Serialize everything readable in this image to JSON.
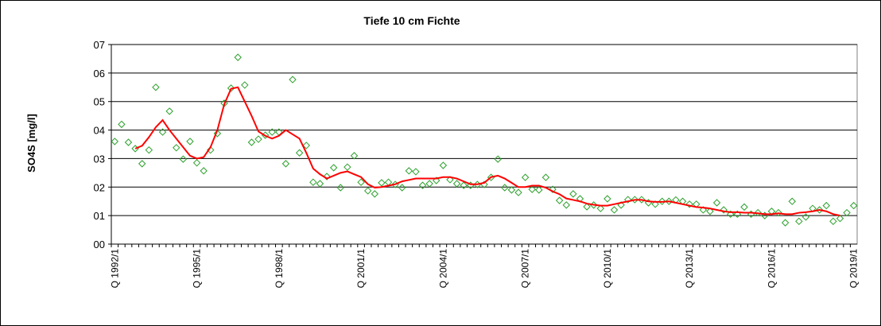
{
  "chart_data": {
    "type": "line",
    "title": "Tiefe  10 cm    Fichte",
    "y_label": "SO4S [mg/l]",
    "categories": [
      "Q 1992/1",
      null,
      null,
      null,
      null,
      null,
      null,
      null,
      null,
      null,
      null,
      null,
      "Q 1995/1",
      null,
      null,
      null,
      null,
      null,
      null,
      null,
      null,
      null,
      null,
      null,
      "Q 1998/1",
      null,
      null,
      null,
      null,
      null,
      null,
      null,
      null,
      null,
      null,
      null,
      "Q 2001/1",
      null,
      null,
      null,
      null,
      null,
      null,
      null,
      null,
      null,
      null,
      null,
      "Q 2004/1",
      null,
      null,
      null,
      null,
      null,
      null,
      null,
      null,
      null,
      null,
      null,
      "Q 2007/1",
      null,
      null,
      null,
      null,
      null,
      null,
      null,
      null,
      null,
      null,
      null,
      "Q 2010/1",
      null,
      null,
      null,
      null,
      null,
      null,
      null,
      null,
      null,
      null,
      null,
      "Q 2013/1",
      null,
      null,
      null,
      null,
      null,
      null,
      null,
      null,
      null,
      null,
      null,
      "Q 2016/1",
      null,
      null,
      null,
      null,
      null,
      null,
      null,
      null,
      null,
      null,
      null,
      "Q 2019/1"
    ],
    "series": [
      {
        "mark": "diamond",
        "color": "#2ca02c",
        "values": [
          3.6,
          4.2,
          3.57,
          3.35,
          2.82,
          3.3,
          5.5,
          3.93,
          4.66,
          3.38,
          2.98,
          3.6,
          2.85,
          2.57,
          3.3,
          3.88,
          4.94,
          5.47,
          6.55,
          5.58,
          3.57,
          3.68,
          3.82,
          3.93,
          3.93,
          2.82,
          5.77,
          3.2,
          3.46,
          2.17,
          2.12,
          2.37,
          2.68,
          1.98,
          2.7,
          3.1,
          2.17,
          1.87,
          1.76,
          2.15,
          2.17,
          2.09,
          1.98,
          2.57,
          2.54,
          2.06,
          2.12,
          2.23,
          2.76,
          2.26,
          2.12,
          2.06,
          2.06,
          2.09,
          2.09,
          2.34,
          2.98,
          1.98,
          1.9,
          1.81,
          2.34,
          1.92,
          1.9,
          2.34,
          1.92,
          1.53,
          1.37,
          1.76,
          1.59,
          1.31,
          1.37,
          1.25,
          1.59,
          1.2,
          1.37,
          1.56,
          1.56,
          1.56,
          1.45,
          1.4,
          1.5,
          1.5,
          1.55,
          1.5,
          1.4,
          1.4,
          1.2,
          1.15,
          1.45,
          1.2,
          1.05,
          1.05,
          1.3,
          1.05,
          1.1,
          1.0,
          1.15,
          1.1,
          0.75,
          1.5,
          0.8,
          0.95,
          1.25,
          1.2,
          1.35,
          0.8,
          0.9,
          1.1,
          1.35
        ]
      },
      {
        "mark": "line",
        "color": "#ff0000",
        "values": [
          null,
          null,
          null,
          3.35,
          3.45,
          3.75,
          4.1,
          4.35,
          4.0,
          3.7,
          3.4,
          3.1,
          3.0,
          3.05,
          3.4,
          4.0,
          4.9,
          5.45,
          5.5,
          5.0,
          4.5,
          3.95,
          3.8,
          3.7,
          3.8,
          4.0,
          3.85,
          3.7,
          3.2,
          2.65,
          2.45,
          2.3,
          2.4,
          2.5,
          2.55,
          2.45,
          2.35,
          2.1,
          1.98,
          2.0,
          2.05,
          2.1,
          2.2,
          2.25,
          2.3,
          2.3,
          2.3,
          2.3,
          2.35,
          2.35,
          2.3,
          2.2,
          2.1,
          2.1,
          2.15,
          2.35,
          2.4,
          2.3,
          2.15,
          2.0,
          2.0,
          2.05,
          2.05,
          1.98,
          1.85,
          1.75,
          1.6,
          1.55,
          1.5,
          1.42,
          1.38,
          1.35,
          1.35,
          1.4,
          1.45,
          1.5,
          1.55,
          1.55,
          1.5,
          1.48,
          1.48,
          1.5,
          1.45,
          1.4,
          1.35,
          1.3,
          1.28,
          1.25,
          1.2,
          1.15,
          1.12,
          1.12,
          1.1,
          1.1,
          1.08,
          1.05,
          1.05,
          1.08,
          1.05,
          1.05,
          1.1,
          1.12,
          1.15,
          1.2,
          1.15,
          1.05,
          1.0,
          null,
          null
        ]
      }
    ],
    "ylim": [
      0,
      7
    ],
    "yticks": [
      {
        "value": 0,
        "label": "00"
      },
      {
        "value": 1,
        "label": "01"
      },
      {
        "value": 2,
        "label": "02"
      },
      {
        "value": 3,
        "label": "03"
      },
      {
        "value": 4,
        "label": "04"
      },
      {
        "value": 5,
        "label": "05"
      },
      {
        "value": 6,
        "label": "06"
      },
      {
        "value": 7,
        "label": "07"
      }
    ],
    "grid": true
  }
}
